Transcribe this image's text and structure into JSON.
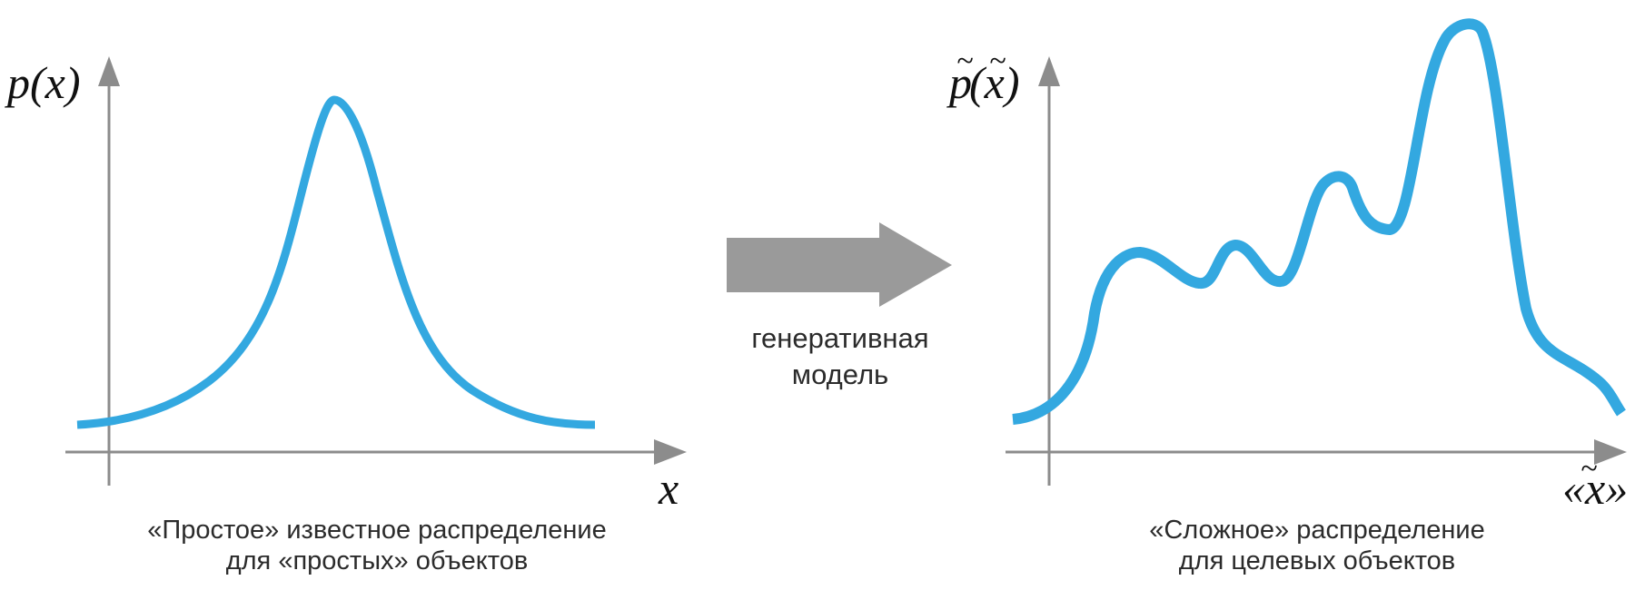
{
  "colors": {
    "curve": "#33a8e0",
    "axis": "#8c8c8c",
    "arrow": "#9a9a9a",
    "text": "#2b2b2b"
  },
  "left_plot": {
    "y_label": "p(x)",
    "x_label": "x",
    "caption_line1": "«Простое» известное распределение",
    "caption_line2": "для «простых» объектов"
  },
  "arrow": {
    "label_line1": "генеративная",
    "label_line2": "модель"
  },
  "right_plot": {
    "y_label_p": "p",
    "y_label_rest": "(x)",
    "x_label": "«x»",
    "caption_line1": "«Сложное» распределение",
    "caption_line2": "для целевых объектов"
  }
}
